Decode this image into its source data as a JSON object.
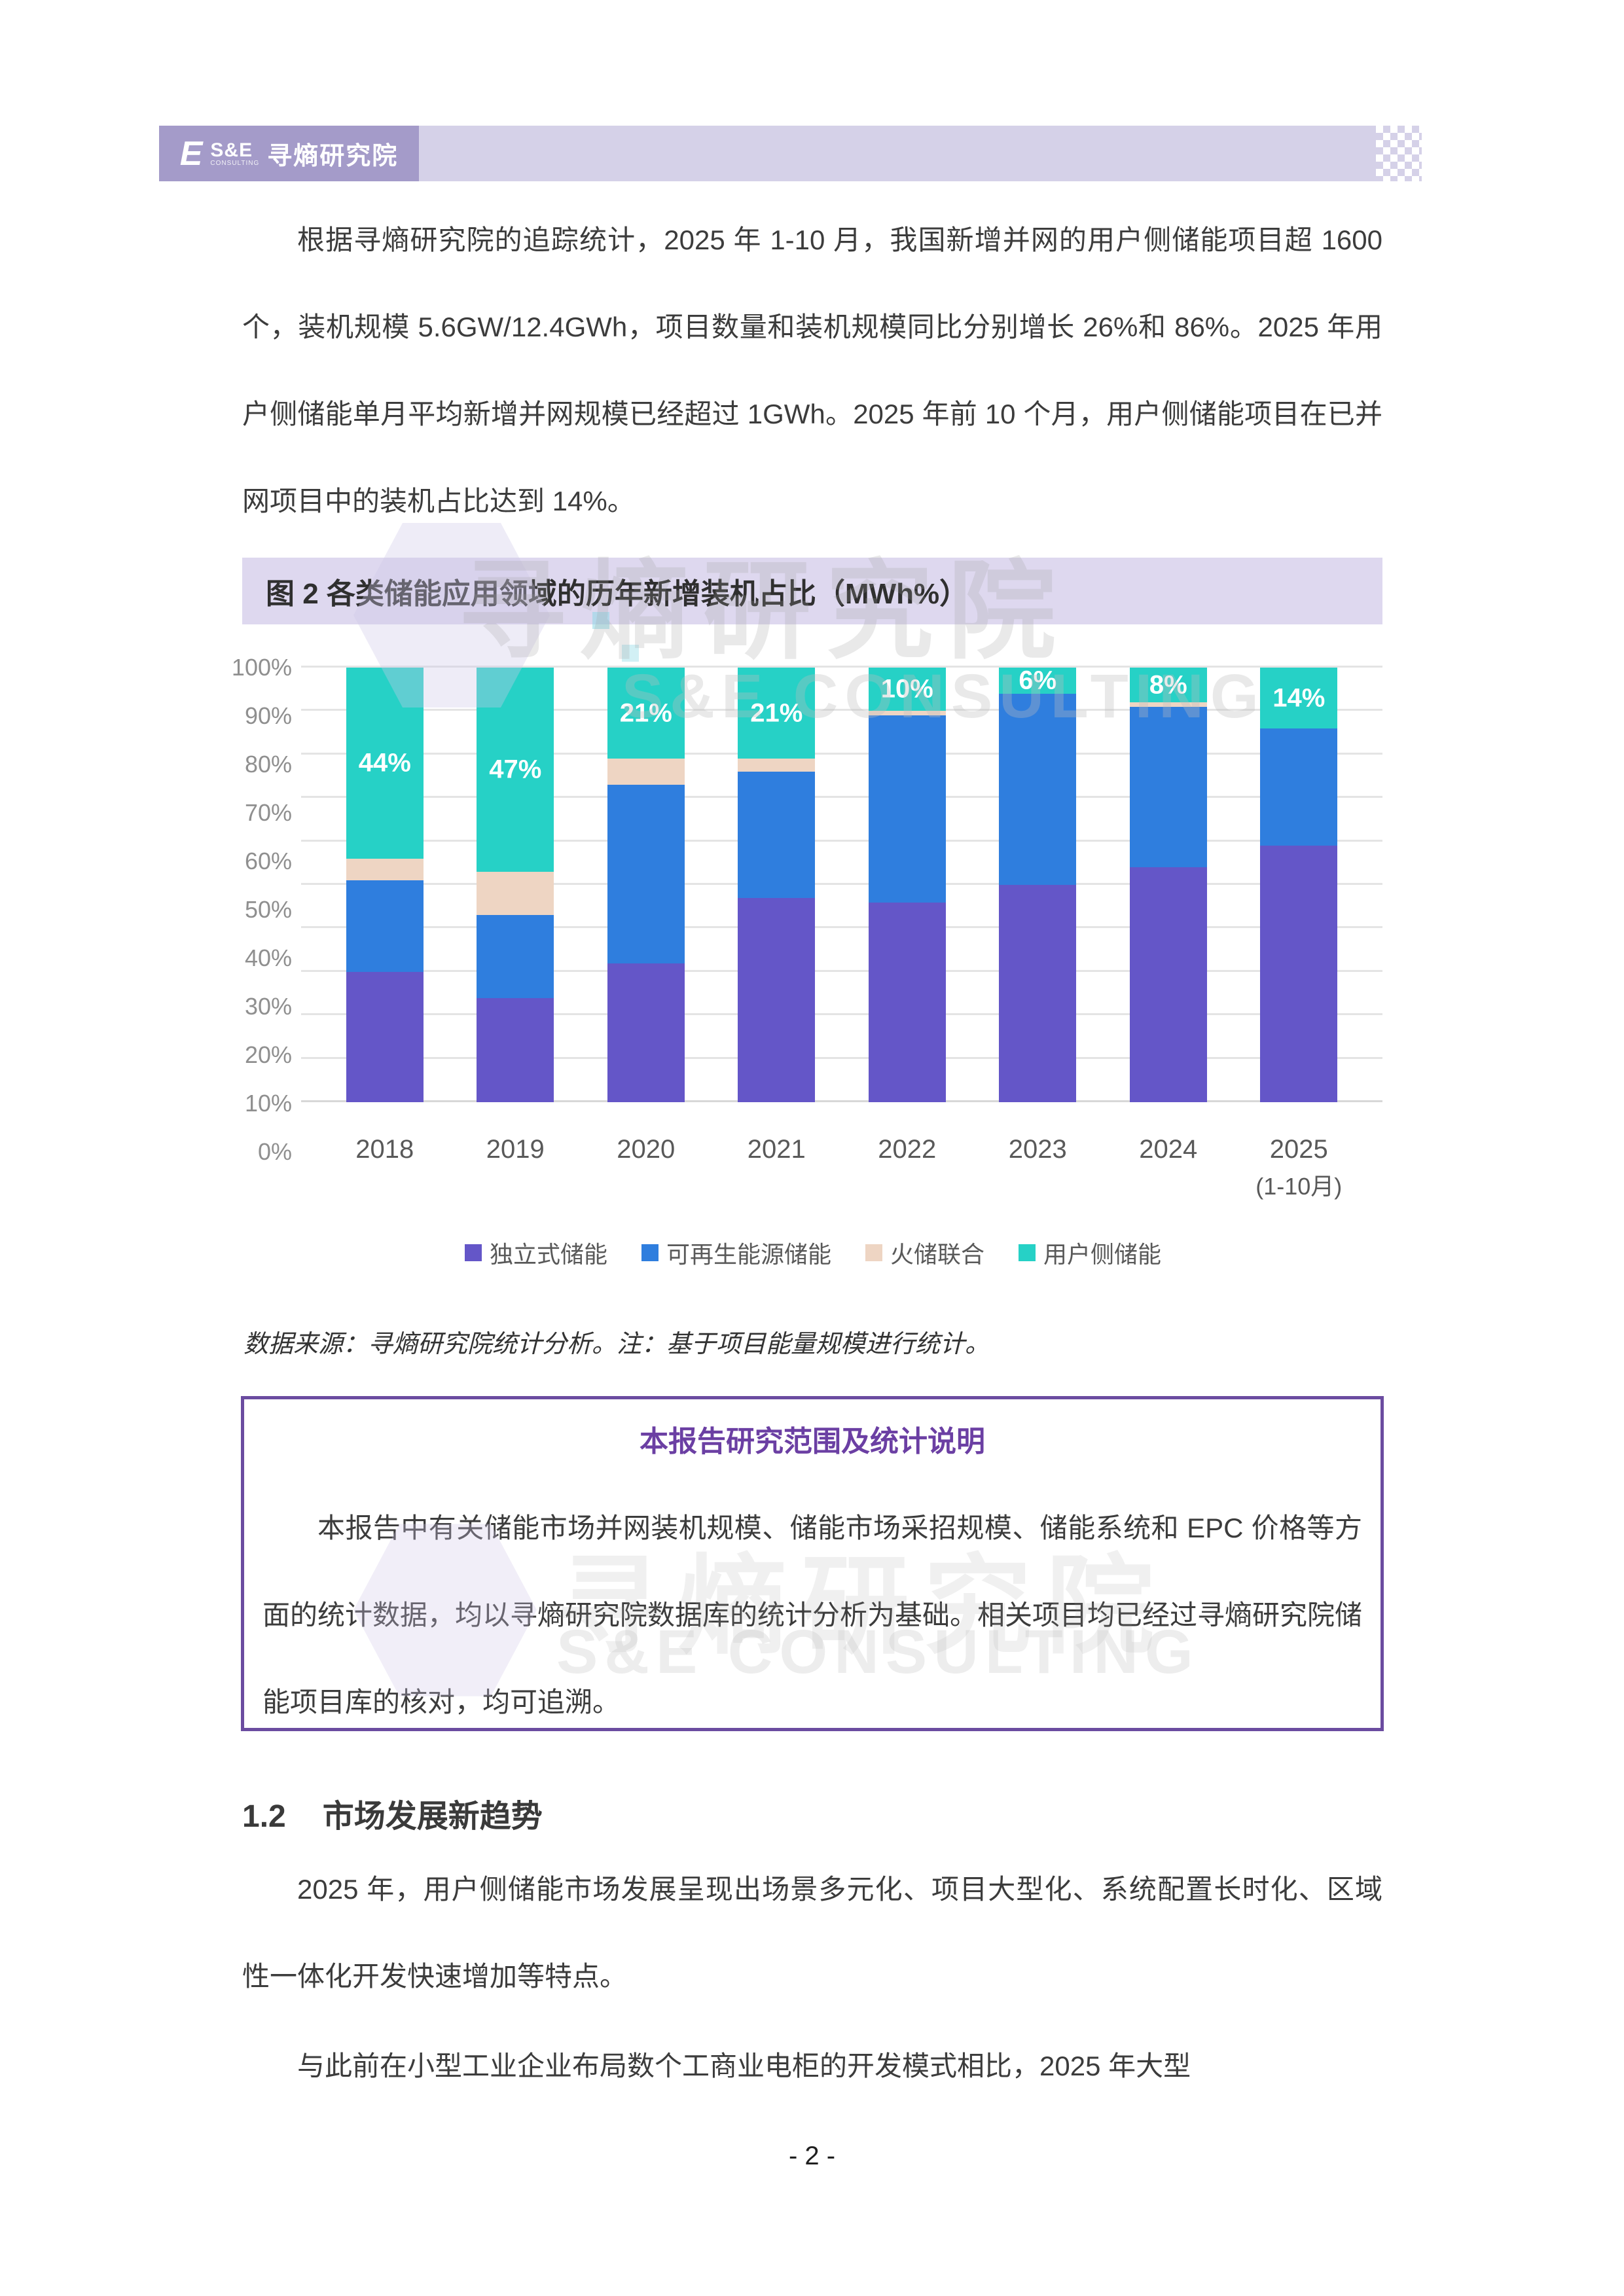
{
  "colors": {
    "header_dark": "#a49bc9",
    "header_light": "#d5d1e8",
    "banner_bg": "#ded8ef",
    "box_border": "#6b4ca0",
    "box_title": "#6b3fa3",
    "grid": "#e4e4e4",
    "axis_text": "#8f8f8f",
    "label_text": "#595959",
    "body_text": "#3c3c3c"
  },
  "header": {
    "brand_mark": "E",
    "brand_sub": "S&E",
    "brand_tagline": "CONSULTING",
    "brand_name": "寻熵研究院"
  },
  "watermark": {
    "line1": "寻熵研究院",
    "line2": "S&E CONSULTING"
  },
  "intro": {
    "text": "根据寻熵研究院的追踪统计，2025 年 1-10 月，我国新增并网的用户侧储能项目超 1600 个，装机规模 5.6GW/12.4GWh，项目数量和装机规模同比分别增长 26%和 86%。2025 年用户侧储能单月平均新增并网规模已经超过 1GWh。2025 年前 10 个月，用户侧储能项目在已并网项目中的装机占比达到 14%。"
  },
  "chart_data": {
    "type": "bar",
    "stacked": true,
    "title": "图 2 各类储能应用领域的历年新增装机占比（MWh%）",
    "categories": [
      "2018",
      "2019",
      "2020",
      "2021",
      "2022",
      "2023",
      "2024",
      "2025"
    ],
    "category_sublabels": [
      "",
      "",
      "",
      "",
      "",
      "",
      "",
      "(1-10月)"
    ],
    "series": [
      {
        "name": "独立式储能",
        "color": "#6456c8",
        "values": [
          30,
          24,
          32,
          47,
          46,
          50,
          54,
          59
        ]
      },
      {
        "name": "可再生能源储能",
        "color": "#2f7ede",
        "values": [
          21,
          19,
          41,
          29,
          43,
          44,
          37,
          27
        ]
      },
      {
        "name": "火储联合",
        "color": "#eed5c3",
        "values": [
          5,
          10,
          6,
          3,
          1,
          0,
          1,
          0
        ]
      },
      {
        "name": "用户侧储能",
        "color": "#26d1c6",
        "values": [
          44,
          47,
          21,
          21,
          10,
          6,
          8,
          14
        ]
      }
    ],
    "top_labels": [
      "44%",
      "47%",
      "21%",
      "21%",
      "10%",
      "6%",
      "8%",
      "14%"
    ],
    "ylim": [
      0,
      100
    ],
    "yticks": [
      "0%",
      "10%",
      "20%",
      "30%",
      "40%",
      "50%",
      "60%",
      "70%",
      "80%",
      "90%",
      "100%"
    ],
    "grid": true,
    "legend_position": "bottom"
  },
  "figure": {
    "source_note": "数据来源：寻熵研究院统计分析。注：基于项目能量规模进行统计。"
  },
  "statement_box": {
    "title": "本报告研究范围及统计说明",
    "body": "本报告中有关储能市场并网装机规模、储能市场采招规模、储能系统和 EPC 价格等方面的统计数据，均以寻熵研究院数据库的统计分析为基础。相关项目均已经过寻熵研究院储能项目库的核对，均可追溯。"
  },
  "section": {
    "number": "1.2",
    "title": "市场发展新趋势"
  },
  "paragraphs": {
    "trend": "2025 年，用户侧储能市场发展呈现出场景多元化、项目大型化、系统配置长时化、区域性一体化开发快速增加等特点。",
    "compare": "与此前在小型工业企业布局数个工商业电柜的开发模式相比，2025 年大型"
  },
  "page": {
    "number_label": "- 2 -"
  }
}
